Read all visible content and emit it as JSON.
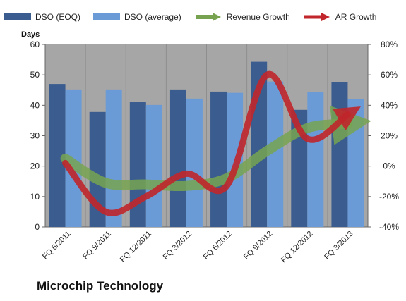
{
  "chart_data": {
    "type": "bar",
    "title": "",
    "y_axis_title": "Days",
    "categories": [
      "FQ 6/2011",
      "FQ 9/2011",
      "FQ 12/2011",
      "FQ 3/2012",
      "FQ 6/2012",
      "FQ 9/2012",
      "FQ 12/2012",
      "FQ 3/2013"
    ],
    "ylim": [
      0,
      60
    ],
    "yticks": [
      0,
      10,
      20,
      30,
      40,
      50,
      60
    ],
    "y2lim": [
      -40,
      80
    ],
    "y2ticks": [
      "-40%",
      "-20%",
      "0%",
      "20%",
      "40%",
      "60%",
      "80%"
    ],
    "series": [
      {
        "name": "DSO (EOQ)",
        "type": "bar",
        "axis": "left",
        "color": "#3a5c8f",
        "values": [
          47.0,
          37.8,
          41.0,
          45.2,
          44.5,
          54.3,
          38.5,
          47.5
        ]
      },
      {
        "name": "DSO (average)",
        "type": "bar",
        "axis": "left",
        "color": "#6b9bd6",
        "values": [
          45.2,
          45.2,
          40.1,
          42.2,
          44.1,
          47.8,
          44.3,
          42.0
        ]
      },
      {
        "name": "Revenue Growth",
        "type": "line-arrow",
        "axis": "right",
        "color": "#77a351",
        "values": [
          5,
          -11,
          -12,
          -13,
          -8,
          10,
          25,
          28
        ]
      },
      {
        "name": "AR Growth",
        "type": "line-arrow",
        "axis": "right",
        "color": "#c0262b",
        "values": [
          2,
          -30,
          -20,
          -5,
          -13,
          60,
          18,
          34
        ]
      }
    ],
    "grid": false,
    "legend_position": "top"
  },
  "footer": {
    "company": "Microchip Technology"
  }
}
